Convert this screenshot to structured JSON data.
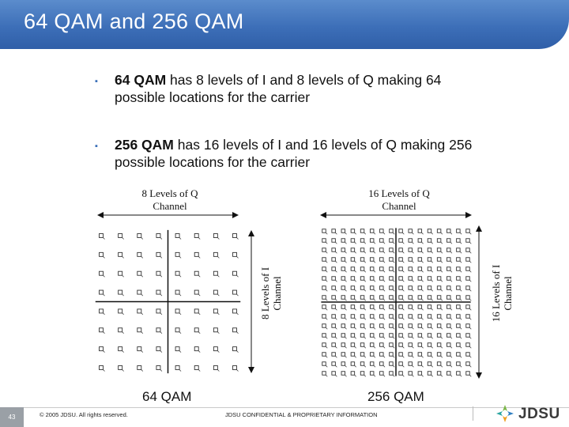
{
  "title": "64 QAM and 256 QAM",
  "bullets": [
    {
      "bold": "64 QAM",
      "text": " has 8 levels of I and 8 levels of Q making 64 possible locations for the carrier"
    },
    {
      "bold": "256 QAM",
      "text": " has 16 levels of I and 16 levels of Q making 256 possible locations for the carrier"
    }
  ],
  "diagram64": {
    "top_label_line1": "8 Levels of Q",
    "top_label_line2": "Channel",
    "side_label_line1": "8 Levels of I",
    "side_label_line2": "Channel",
    "caption": "64 QAM",
    "levels": 8
  },
  "diagram256": {
    "top_label_line1": "16 Levels of Q",
    "top_label_line2": "Channel",
    "side_label_line1": "16 Levels of I",
    "side_label_line2": "Channel",
    "caption": "256 QAM",
    "levels": 16
  },
  "footer": {
    "page_number": "43",
    "copyright": "© 2005 JDSU. All rights reserved.",
    "confidential": "JDSU CONFIDENTIAL & PROPRIETARY INFORMATION",
    "logo_text": "JDSU"
  },
  "colors": {
    "title_bar": "#3d6fb8",
    "bullet": "#3a6fb8"
  }
}
